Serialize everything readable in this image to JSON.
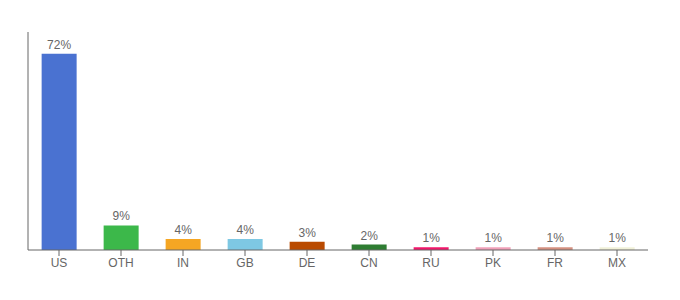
{
  "chart_data": {
    "type": "bar",
    "categories": [
      "US",
      "OTH",
      "IN",
      "GB",
      "DE",
      "CN",
      "RU",
      "PK",
      "FR",
      "MX"
    ],
    "values": [
      72,
      9,
      4,
      4,
      3,
      2,
      1,
      1,
      1,
      1
    ],
    "value_labels": [
      "72%",
      "9%",
      "4%",
      "4%",
      "3%",
      "2%",
      "1%",
      "1%",
      "1%",
      "1%"
    ],
    "colors": [
      "#4a72d1",
      "#3cb84a",
      "#f5a623",
      "#7ec8e3",
      "#b94a00",
      "#2e7d32",
      "#f0166a",
      "#f0a0b8",
      "#d49080",
      "#f0f0d8"
    ],
    "ylim": [
      0,
      80
    ],
    "grid": false,
    "data_labels": true,
    "tick_labels": "x"
  }
}
